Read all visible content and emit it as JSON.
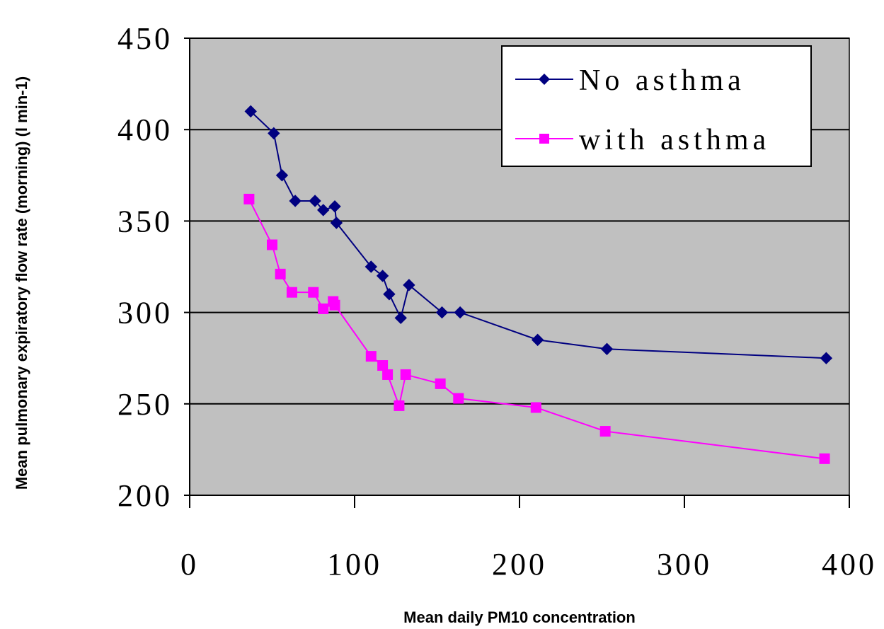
{
  "chart_data": {
    "type": "line",
    "title": "",
    "xlabel": "Mean daily PM10 concentration",
    "ylabel": "Mean pulmonary expiratory flow rate (morning) (l min-1)",
    "xlim": [
      0,
      400
    ],
    "ylim": [
      200,
      450
    ],
    "xticks": [
      "0",
      "100",
      "200",
      "300",
      "400"
    ],
    "yticks": [
      "200",
      "250",
      "300",
      "350",
      "400",
      "450"
    ],
    "grid": "horizontal",
    "legend_position": "top-right",
    "plot_background": "#c0c0c0",
    "series": [
      {
        "name": "No asthma",
        "color": "#000080",
        "marker": "diamond",
        "x": [
          37,
          51,
          56,
          64,
          76,
          81,
          88,
          89,
          110,
          117,
          121,
          128,
          133,
          153,
          164,
          211,
          253,
          386
        ],
        "y": [
          410,
          398,
          375,
          361,
          361,
          356,
          358,
          349,
          325,
          320,
          310,
          297,
          315,
          300,
          300,
          285,
          280,
          275
        ]
      },
      {
        "name": "with asthma",
        "color": "#ff00ff",
        "marker": "square",
        "x": [
          36,
          50,
          55,
          62,
          75,
          81,
          87,
          88,
          110,
          117,
          120,
          127,
          131,
          152,
          163,
          210,
          252,
          385
        ],
        "y": [
          362,
          337,
          321,
          311,
          311,
          302,
          306,
          304,
          276,
          271,
          266,
          249,
          266,
          261,
          253,
          248,
          235,
          220
        ]
      }
    ]
  }
}
